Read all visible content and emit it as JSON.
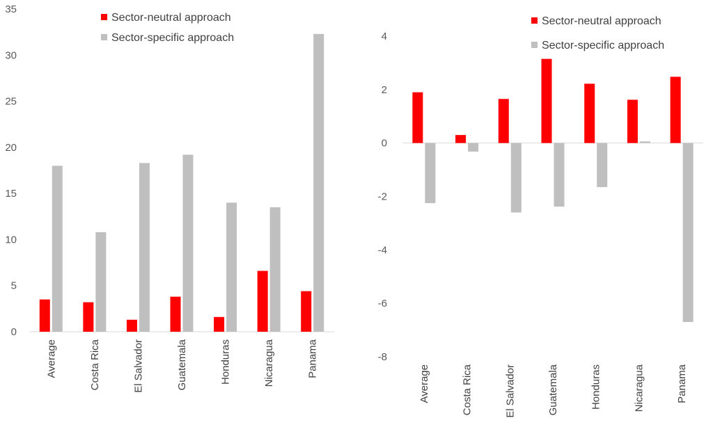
{
  "chart_data": [
    {
      "type": "bar",
      "categories": [
        "Average",
        "Costa Rica",
        "El Salvador",
        "Guatemala",
        "Honduras",
        "Nicaragua",
        "Panama"
      ],
      "series": [
        {
          "name": "Sector-neutral approach",
          "color": "#ff0000",
          "values": [
            3.5,
            3.2,
            1.3,
            3.8,
            1.6,
            6.6,
            4.4
          ]
        },
        {
          "name": "Sector-specific approach",
          "color": "#bfbfbf",
          "values": [
            18.0,
            10.8,
            18.3,
            19.2,
            14.0,
            13.5,
            32.3
          ]
        }
      ],
      "ylim": [
        0,
        35
      ],
      "yticks": [
        0,
        5,
        10,
        15,
        20,
        25,
        30,
        35
      ],
      "grid": false,
      "legend": "top-center"
    },
    {
      "type": "bar",
      "categories": [
        "Average",
        "Costa Rica",
        "El Salvador",
        "Guatemala",
        "Honduras",
        "Nicaragua",
        "Panama"
      ],
      "series": [
        {
          "name": "Sector-neutral approach",
          "color": "#ff0000",
          "values": [
            1.9,
            0.3,
            1.65,
            3.15,
            2.22,
            1.62,
            2.48
          ]
        },
        {
          "name": "Sector-specific approach",
          "color": "#bfbfbf",
          "values": [
            -2.25,
            -0.32,
            -2.6,
            -2.38,
            -1.65,
            0.06,
            -6.7
          ]
        }
      ],
      "ylim": [
        -8,
        4
      ],
      "yticks": [
        -8,
        -6,
        -4,
        -2,
        0,
        2,
        4
      ],
      "grid": false,
      "legend": "top-right"
    }
  ]
}
